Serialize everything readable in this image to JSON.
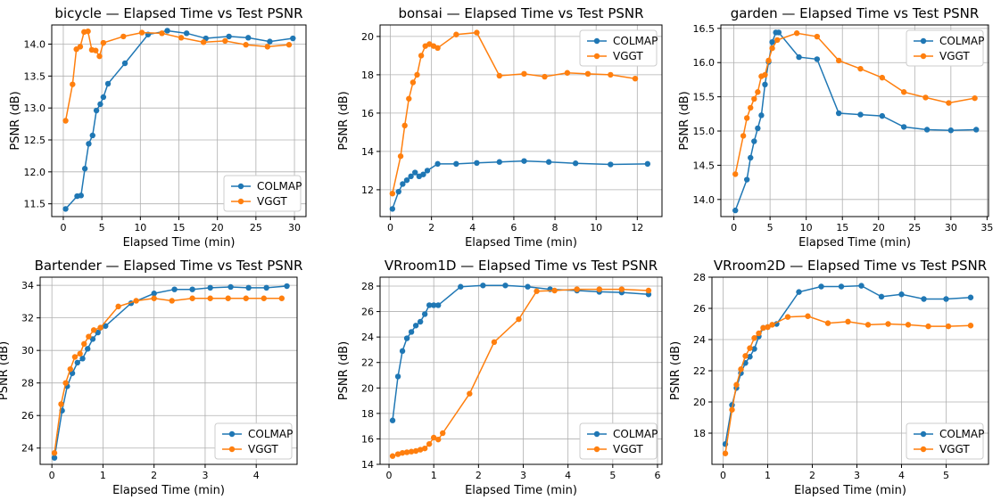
{
  "colors": {
    "COLMAP": "#1f77b4",
    "VGGT": "#ff7f0e"
  },
  "chart_data": [
    {
      "type": "line",
      "title": "bicycle — Elapsed Time vs Test PSNR",
      "xlabel": "Elapsed Time (min)",
      "ylabel": "PSNR (dB)",
      "xlim": [
        -1.5,
        31.5
      ],
      "ylim": [
        11.3,
        14.3
      ],
      "xticks": [
        0,
        5,
        10,
        15,
        20,
        25,
        30
      ],
      "yticks": [
        11.5,
        12.0,
        12.5,
        13.0,
        13.5,
        14.0
      ],
      "ytick_decimals": 1,
      "grid": true,
      "legend": "bottom-right",
      "series": [
        {
          "name": "COLMAP",
          "x": [
            0.3,
            1.8,
            2.3,
            2.8,
            3.3,
            3.8,
            4.3,
            4.8,
            5.2,
            5.8,
            8.0,
            11.0,
            13.5,
            16.0,
            18.5,
            21.5,
            24.0,
            26.8,
            29.8
          ],
          "y": [
            11.42,
            11.62,
            11.63,
            12.05,
            12.44,
            12.57,
            12.96,
            13.06,
            13.17,
            13.38,
            13.7,
            14.15,
            14.21,
            14.17,
            14.09,
            14.12,
            14.1,
            14.04,
            14.09
          ]
        },
        {
          "name": "VGGT",
          "x": [
            0.3,
            1.2,
            1.7,
            2.2,
            2.7,
            3.2,
            3.7,
            4.2,
            4.7,
            5.2,
            7.8,
            10.2,
            12.8,
            15.3,
            18.2,
            21.0,
            23.7,
            26.5,
            29.3
          ],
          "y": [
            12.8,
            13.37,
            13.92,
            13.96,
            14.19,
            14.2,
            13.91,
            13.9,
            13.81,
            14.02,
            14.12,
            14.18,
            14.17,
            14.1,
            14.03,
            14.05,
            13.99,
            13.96,
            13.99
          ]
        }
      ]
    },
    {
      "type": "line",
      "title": "bonsai — Elapsed Time vs Test PSNR",
      "xlabel": "Elapsed Time (min)",
      "ylabel": "PSNR (dB)",
      "xlim": [
        -0.5,
        13.2
      ],
      "ylim": [
        10.6,
        20.6
      ],
      "xticks": [
        0,
        2,
        4,
        6,
        8,
        10,
        12
      ],
      "yticks": [
        12,
        14,
        16,
        18,
        20
      ],
      "ytick_decimals": 0,
      "grid": true,
      "legend": "top-right",
      "series": [
        {
          "name": "COLMAP",
          "x": [
            0.1,
            0.4,
            0.6,
            0.8,
            1.0,
            1.2,
            1.4,
            1.6,
            1.8,
            2.3,
            3.2,
            4.2,
            5.3,
            6.5,
            7.7,
            9.0,
            10.7,
            12.5
          ],
          "y": [
            11.0,
            11.9,
            12.3,
            12.5,
            12.7,
            12.9,
            12.7,
            12.8,
            13.0,
            13.35,
            13.35,
            13.4,
            13.45,
            13.5,
            13.45,
            13.38,
            13.32,
            13.35
          ]
        },
        {
          "name": "VGGT",
          "x": [
            0.1,
            0.5,
            0.7,
            0.9,
            1.1,
            1.3,
            1.5,
            1.7,
            1.9,
            2.1,
            2.3,
            3.2,
            4.2,
            5.3,
            6.5,
            7.5,
            8.6,
            9.6,
            10.7,
            11.9
          ],
          "y": [
            11.8,
            13.75,
            15.35,
            16.75,
            17.6,
            18.0,
            19.0,
            19.5,
            19.6,
            19.5,
            19.4,
            20.1,
            20.2,
            17.95,
            18.05,
            17.9,
            18.1,
            18.05,
            18.0,
            17.8
          ]
        }
      ]
    },
    {
      "type": "line",
      "title": "garden — Elapsed Time vs Test PSNR",
      "xlabel": "Elapsed Time (min)",
      "ylabel": "PSNR (dB)",
      "xlim": [
        -1.8,
        35.2
      ],
      "ylim": [
        13.75,
        16.55
      ],
      "xticks": [
        0,
        5,
        10,
        15,
        20,
        25,
        30,
        35
      ],
      "yticks": [
        14.0,
        14.5,
        15.0,
        15.5,
        16.0,
        16.5
      ],
      "ytick_decimals": 1,
      "grid": true,
      "legend": "top-right",
      "series": [
        {
          "name": "COLMAP",
          "x": [
            0.2,
            1.8,
            2.3,
            2.8,
            3.3,
            3.8,
            4.3,
            4.8,
            5.3,
            5.8,
            6.2,
            9.0,
            11.5,
            14.5,
            17.5,
            20.5,
            23.5,
            26.7,
            30.0,
            33.5
          ],
          "y": [
            13.84,
            14.29,
            14.61,
            14.85,
            15.04,
            15.23,
            15.68,
            16.01,
            16.3,
            16.44,
            16.44,
            16.08,
            16.05,
            15.26,
            15.24,
            15.22,
            15.06,
            15.02,
            15.01,
            15.02
          ]
        },
        {
          "name": "VGGT",
          "x": [
            0.2,
            1.3,
            1.8,
            2.3,
            2.8,
            3.3,
            3.8,
            4.3,
            4.8,
            5.3,
            6.0,
            8.7,
            11.5,
            14.5,
            17.5,
            20.5,
            23.5,
            26.5,
            29.7,
            33.3
          ],
          "y": [
            14.37,
            14.93,
            15.19,
            15.34,
            15.47,
            15.57,
            15.8,
            15.82,
            16.03,
            16.21,
            16.33,
            16.43,
            16.38,
            16.03,
            15.91,
            15.78,
            15.57,
            15.49,
            15.41,
            15.48
          ]
        }
      ]
    },
    {
      "type": "line",
      "title": "Bartender — Elapsed Time vs Test PSNR",
      "xlabel": "Elapsed Time (min)",
      "ylabel": "PSNR (dB)",
      "xlim": [
        -0.23,
        4.8
      ],
      "ylim": [
        23.0,
        34.5
      ],
      "xticks": [
        0,
        1,
        2,
        3,
        4
      ],
      "yticks": [
        24,
        26,
        28,
        30,
        32,
        34
      ],
      "ytick_decimals": 0,
      "grid": true,
      "legend": "bottom-right",
      "series": [
        {
          "name": "COLMAP",
          "x": [
            0.05,
            0.2,
            0.3,
            0.4,
            0.5,
            0.6,
            0.7,
            0.8,
            0.9,
            1.05,
            1.55,
            2.0,
            2.4,
            2.75,
            3.1,
            3.5,
            3.85,
            4.2,
            4.6
          ],
          "y": [
            23.4,
            26.3,
            27.8,
            28.6,
            29.25,
            29.5,
            30.1,
            30.7,
            31.1,
            31.5,
            32.9,
            33.5,
            33.75,
            33.75,
            33.85,
            33.9,
            33.85,
            33.85,
            33.95
          ]
        },
        {
          "name": "VGGT",
          "x": [
            0.05,
            0.18,
            0.27,
            0.36,
            0.45,
            0.55,
            0.63,
            0.72,
            0.82,
            0.95,
            1.3,
            1.65,
            2.0,
            2.35,
            2.75,
            3.1,
            3.45,
            3.8,
            4.15,
            4.5
          ],
          "y": [
            23.7,
            26.7,
            28.0,
            28.85,
            29.6,
            29.8,
            30.4,
            30.85,
            31.25,
            31.4,
            32.7,
            33.05,
            33.2,
            33.05,
            33.2,
            33.2,
            33.2,
            33.2,
            33.2,
            33.2
          ]
        }
      ]
    },
    {
      "type": "line",
      "title": "VRroom1D — Elapsed Time vs Test PSNR",
      "xlabel": "Elapsed Time (min)",
      "ylabel": "PSNR (dB)",
      "xlim": [
        -0.2,
        6.1
      ],
      "ylim": [
        14.0,
        28.7
      ],
      "xticks": [
        0,
        1,
        2,
        3,
        4,
        5,
        6
      ],
      "yticks": [
        14,
        16,
        18,
        20,
        22,
        24,
        26,
        28
      ],
      "ytick_decimals": 0,
      "grid": true,
      "legend": "bottom-right",
      "series": [
        {
          "name": "COLMAP",
          "x": [
            0.08,
            0.2,
            0.3,
            0.4,
            0.5,
            0.6,
            0.7,
            0.8,
            0.9,
            1.0,
            1.1,
            1.6,
            2.1,
            2.6,
            3.1,
            3.6,
            4.2,
            4.7,
            5.2,
            5.8
          ],
          "y": [
            17.45,
            20.9,
            22.9,
            23.9,
            24.4,
            24.9,
            25.2,
            25.8,
            26.5,
            26.5,
            26.5,
            27.95,
            28.05,
            28.05,
            27.95,
            27.75,
            27.65,
            27.55,
            27.5,
            27.35
          ]
        },
        {
          "name": "VGGT",
          "x": [
            0.08,
            0.2,
            0.3,
            0.4,
            0.5,
            0.6,
            0.7,
            0.8,
            0.9,
            1.0,
            1.1,
            1.2,
            1.8,
            2.35,
            2.9,
            3.3,
            3.7,
            4.2,
            4.7,
            5.2,
            5.8
          ],
          "y": [
            14.65,
            14.8,
            14.9,
            14.95,
            15.0,
            15.05,
            15.15,
            15.25,
            15.6,
            16.1,
            15.95,
            16.45,
            19.55,
            23.6,
            25.4,
            27.6,
            27.65,
            27.75,
            27.75,
            27.75,
            27.65
          ]
        }
      ]
    },
    {
      "type": "line",
      "title": "VRroom2D — Elapsed Time vs Test PSNR",
      "xlabel": "Elapsed Time (min)",
      "ylabel": "PSNR (dB)",
      "xlim": [
        -0.25,
        5.95
      ],
      "ylim": [
        16.0,
        28.0
      ],
      "xticks": [
        0,
        1,
        2,
        3,
        4,
        5
      ],
      "yticks": [
        18,
        20,
        22,
        24,
        26,
        28
      ],
      "ytick_decimals": 0,
      "grid": true,
      "legend": "bottom-right",
      "series": [
        {
          "name": "COLMAP",
          "x": [
            0.05,
            0.2,
            0.3,
            0.4,
            0.5,
            0.6,
            0.7,
            0.8,
            0.9,
            1.0,
            1.2,
            1.7,
            2.2,
            2.65,
            3.1,
            3.55,
            4.0,
            4.5,
            5.0,
            5.55
          ],
          "y": [
            17.3,
            19.8,
            20.9,
            21.85,
            22.5,
            22.9,
            23.4,
            24.2,
            24.75,
            24.8,
            25.0,
            27.05,
            27.4,
            27.4,
            27.45,
            26.75,
            26.9,
            26.6,
            26.6,
            26.7
          ]
        },
        {
          "name": "VGGT",
          "x": [
            0.05,
            0.2,
            0.3,
            0.4,
            0.5,
            0.6,
            0.7,
            0.8,
            0.9,
            1.0,
            1.1,
            1.45,
            1.9,
            2.35,
            2.8,
            3.25,
            3.7,
            4.15,
            4.6,
            5.05,
            5.55
          ],
          "y": [
            16.7,
            19.5,
            21.1,
            22.1,
            22.95,
            23.45,
            24.1,
            24.4,
            24.75,
            24.8,
            24.95,
            25.45,
            25.5,
            25.05,
            25.15,
            24.95,
            25.0,
            24.95,
            24.85,
            24.85,
            24.9
          ]
        }
      ]
    }
  ]
}
